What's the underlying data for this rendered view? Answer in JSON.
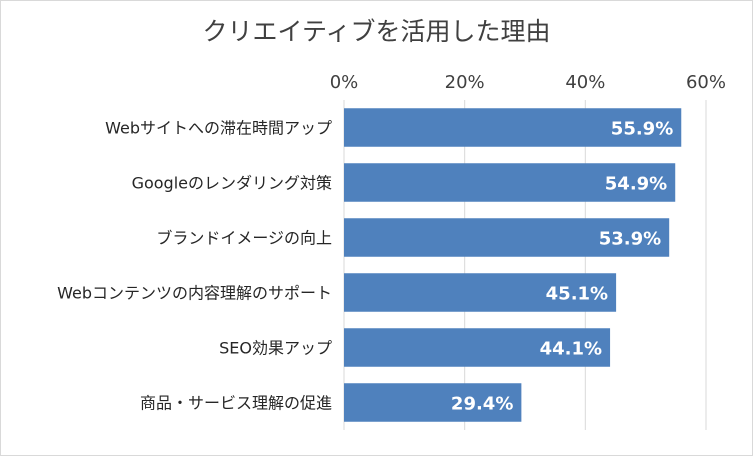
{
  "chart_data": {
    "type": "bar",
    "orientation": "horizontal",
    "title": "クリエイティブを活用した理由",
    "xlabel": "",
    "ylabel": "",
    "xlim": [
      0,
      60
    ],
    "x_ticks": [
      0,
      20,
      40,
      60
    ],
    "x_tick_labels": [
      "0%",
      "20%",
      "40%",
      "60%"
    ],
    "x_axis_position": "top",
    "grid": true,
    "legend": "none",
    "bar_color": "#4f81bd",
    "categories": [
      "Webサイトへの滞在時間アップ",
      "Googleのレンダリング対策",
      "ブランドイメージの向上",
      "Webコンテンツの内容理解のサポート",
      "SEO効果アップ",
      "商品・サービス理解の促進"
    ],
    "values": [
      55.9,
      54.9,
      53.9,
      45.1,
      44.1,
      29.4
    ],
    "value_labels": [
      "55.9%",
      "54.9%",
      "53.9%",
      "45.1%",
      "44.1%",
      "29.4%"
    ]
  }
}
